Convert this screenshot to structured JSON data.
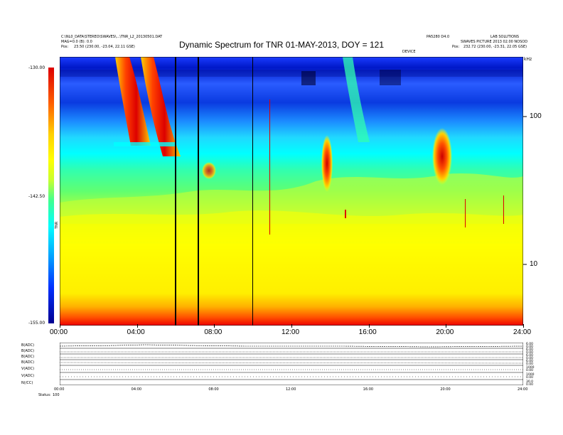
{
  "header": {
    "left_line1": "C:\\NL0_DATA\\STEREO\\SWAVES\\...\\TNR_L2_20130501.DAT",
    "left_line2": "MAG=0.0 (B): 0.0",
    "left_line3": "Pos:",
    "left_coords": "23.50 (230.00, -23.04, 22.11 GSE)",
    "right_line1": "PA5280 D4.0",
    "right_line2": "LAB SOLUTIONS",
    "right_line3": "SWAVES PICTURE 2013 02.00 NOSOD",
    "right_line4": "Pos:",
    "right_coords": "232.72 (230.00, -23.31, 22.05 GSE)",
    "right_tag": "DEVICE"
  },
  "chart_data": [
    {
      "type": "heatmap",
      "title": "Dynamic Spectrum for TNR 01-MAY-2013, DOY = 121",
      "x_tick_labels": [
        "00:00",
        "04:00",
        "08:00",
        "12:00",
        "16:00",
        "20:00",
        "24:00"
      ],
      "xlim_hours": [
        0,
        24
      ],
      "y_scale": "log",
      "y_tick_labels": [
        "100",
        "10"
      ],
      "y_unit_label": "kHz",
      "colorbar": {
        "label": "TNR",
        "tick_labels": [
          "-130.00",
          "-142.50",
          "-155.00"
        ],
        "range": [
          -155.0,
          -130.0
        ],
        "colors_top_to_bottom": [
          "#dd0000",
          "#ff6000",
          "#ffff00",
          "#40ff90",
          "#00ffff",
          "#0030ff",
          "#000090"
        ]
      },
      "data_gap_lines_hours": [
        5.95,
        7.15,
        9.95,
        10.85
      ],
      "type_iii_bursts_hours": [
        2.85,
        4.25,
        14.75
      ],
      "type_ii_like_events_hours": [
        13.95,
        19.85
      ]
    },
    {
      "type": "line",
      "panels": [
        {
          "label": "B(ADC)",
          "range_labels": [
            "6.00",
            "0.00"
          ]
        },
        {
          "label": "B(ADC)",
          "range_labels": [
            "6.00",
            "0.00"
          ]
        },
        {
          "label": "B(ADC)",
          "range_labels": [
            "6.00",
            "0.00"
          ]
        },
        {
          "label": "B(ADC)",
          "range_labels": [
            "6.00",
            "0.00"
          ]
        },
        {
          "label": "V(ADC)",
          "range_labels": [
            "1000",
            "0.00"
          ]
        },
        {
          "label": "V(ADC)",
          "range_labels": [
            "1000",
            "0.00"
          ]
        },
        {
          "label": "N(/CC)",
          "range_labels": [
            "30.0",
            "0.00"
          ]
        }
      ],
      "x_tick_labels": [
        "00:00",
        "04:00",
        "08:00",
        "12:00",
        "16:00",
        "20:00",
        "24:00"
      ],
      "footer_label": "Status:",
      "footer_value": "100"
    }
  ]
}
